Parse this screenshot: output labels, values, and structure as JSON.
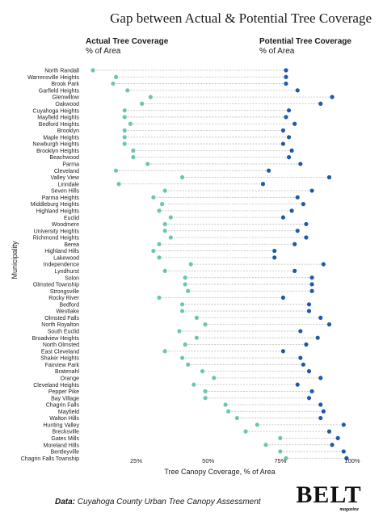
{
  "header": {
    "title": "Gap between Actual & Potential Tree Coverage",
    "actual_label": "Actual Tree Coverage",
    "actual_unit": "% of Area",
    "potential_label": "Potential Tree Coverage",
    "potential_unit": "% of Area"
  },
  "footer": {
    "source_prefix": "Data:",
    "source_text": "Cuyahoga County Urban Tree Canopy Assessment",
    "logo_word": "BELT",
    "logo_sub": "magazine"
  },
  "chart_data": {
    "type": "dumbbell",
    "xlabel": "Tree Canopy Coverage, % of Area",
    "ylabel": "Municipality",
    "xlim": [
      10,
      100
    ],
    "xticks": [
      25,
      50,
      75,
      100
    ],
    "xtick_labels": [
      "25%",
      "50%",
      "75%",
      "100%"
    ],
    "colors": {
      "actual": "#6cc5b0",
      "potential": "#1f5aa6",
      "connector": "#bbbbbb"
    },
    "categories": [
      "North Randall",
      "Warrensville Heights",
      "Brook Park",
      "Garfield Heights",
      "Glenwillow",
      "Oakwood",
      "Cuyahoga Heights",
      "Mayfield Heights",
      "Bedford Heights",
      "Brooklyn",
      "Maple Heights",
      "Newburgh Heights",
      "Brooklyn Heights",
      "Beachwood",
      "Parma",
      "Cleveland",
      "Valley View",
      "Linndale",
      "Seven Hills",
      "Parma Heights",
      "Middleburg Heights",
      "Highland Heights",
      "Euclid",
      "Woodmere",
      "University Heights",
      "Richmond Heights",
      "Berea",
      "Highland Hills",
      "Lakewood",
      "Independence",
      "Lyndhurst",
      "Solon",
      "Olmsted Township",
      "Strongsville",
      "Rocky River",
      "Bedford",
      "Westlake",
      "Olmsted Falls",
      "North Royalton",
      "South Euclid",
      "Broadview Heights",
      "North Olmsted",
      "East Cleveland",
      "Shaker Heights",
      "Fairview Park",
      "Bratenahl",
      "Orange",
      "Cleveland Heights",
      "Pepper Pike",
      "Bay Village",
      "Chagrin Falls",
      "Mayfield",
      "Walton Hills",
      "Hunting Valley",
      "Brecksville",
      "Gates Mills",
      "Moreland Hills",
      "Bentleyville",
      "Chagrin Falls Township"
    ],
    "series": [
      {
        "name": "Actual Tree Coverage",
        "values": [
          10,
          18,
          17,
          22,
          30,
          27,
          21,
          21,
          23,
          21,
          21,
          21,
          24,
          24,
          29,
          18,
          41,
          19,
          35,
          31,
          34,
          33,
          37,
          35,
          35,
          37,
          33,
          31,
          33,
          44,
          35,
          42,
          42,
          43,
          33,
          41,
          41,
          46,
          49,
          40,
          46,
          42,
          35,
          41,
          43,
          48,
          52,
          45,
          49,
          49,
          56,
          57,
          60,
          67,
          63,
          75,
          70,
          75,
          77
        ]
      },
      {
        "name": "Potential Tree Coverage",
        "values": [
          77,
          77,
          77,
          81,
          93,
          89,
          78,
          77,
          80,
          76,
          78,
          76,
          79,
          78,
          82,
          71,
          92,
          69,
          86,
          81,
          83,
          79,
          76,
          84,
          81,
          84,
          80,
          73,
          73,
          90,
          80,
          86,
          86,
          86,
          76,
          85,
          85,
          89,
          92,
          82,
          88,
          84,
          76,
          82,
          83,
          85,
          89,
          81,
          86,
          85,
          89,
          90,
          89,
          97,
          92,
          95,
          93,
          97,
          98
        ]
      }
    ]
  }
}
